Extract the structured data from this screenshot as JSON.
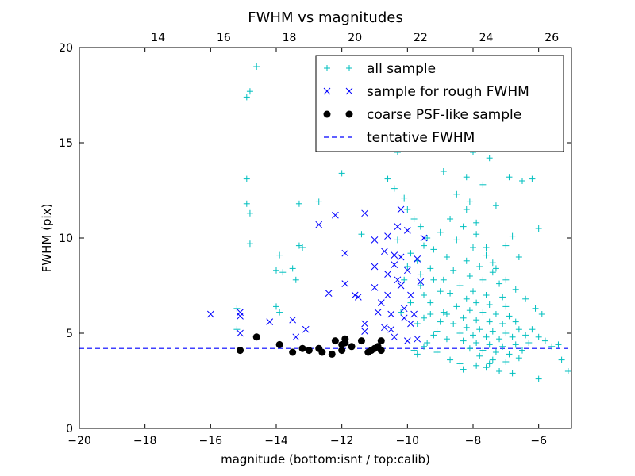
{
  "chart_data": {
    "type": "scatter",
    "title": "FWHM vs magnitudes",
    "xlabel": "magnitude (bottom:isnt / top:calib)",
    "ylabel": "FWHM (pix)",
    "xlim": [
      -20,
      -5
    ],
    "ylim": [
      0,
      20
    ],
    "x_ticks": [
      -20,
      -18,
      -16,
      -14,
      -12,
      -10,
      -8,
      -6
    ],
    "x_tick_labels": [
      "−20",
      "−18",
      "−16",
      "−14",
      "−12",
      "−10",
      "−8",
      "−6"
    ],
    "y_ticks": [
      0,
      5,
      10,
      15,
      20
    ],
    "y_tick_labels": [
      "0",
      "5",
      "10",
      "15",
      "20"
    ],
    "top_axis": {
      "offset": 31.6,
      "ticks": [
        14,
        16,
        18,
        20,
        22,
        24,
        26
      ],
      "tick_labels": [
        "14",
        "16",
        "18",
        "20",
        "22",
        "24",
        "26"
      ]
    },
    "legend_position": "upper right",
    "grid": false,
    "series": [
      {
        "name": "all sample",
        "marker": "plus",
        "color": "#00bfbf",
        "points": [
          [
            -14.6,
            19.0
          ],
          [
            -14.9,
            17.4
          ],
          [
            -14.8,
            17.7
          ],
          [
            -14.9,
            13.1
          ],
          [
            -14.9,
            11.8
          ],
          [
            -14.8,
            11.3
          ],
          [
            -14.8,
            9.7
          ],
          [
            -15.2,
            6.3
          ],
          [
            -15.2,
            5.2
          ],
          [
            -14.0,
            8.3
          ],
          [
            -13.9,
            9.1
          ],
          [
            -13.8,
            8.2
          ],
          [
            -14.0,
            6.4
          ],
          [
            -13.9,
            6.1
          ],
          [
            -13.5,
            8.4
          ],
          [
            -13.4,
            7.8
          ],
          [
            -13.3,
            9.6
          ],
          [
            -13.2,
            9.5
          ],
          [
            -13.3,
            11.8
          ],
          [
            -12.7,
            11.9
          ],
          [
            -12.0,
            13.4
          ],
          [
            -11.4,
            10.2
          ],
          [
            -10.3,
            14.5
          ],
          [
            -10.6,
            13.1
          ],
          [
            -10.4,
            12.6
          ],
          [
            -10.1,
            12.1
          ],
          [
            -9.8,
            11.0
          ],
          [
            -9.6,
            10.6
          ],
          [
            -9.4,
            10.0
          ],
          [
            -9.9,
            9.2
          ],
          [
            -10.0,
            8.5
          ],
          [
            -9.6,
            8.1
          ],
          [
            -9.2,
            7.8
          ],
          [
            -9.5,
            7.0
          ],
          [
            -9.9,
            6.6
          ],
          [
            -9.3,
            6.0
          ],
          [
            -9.7,
            5.5
          ],
          [
            -9.1,
            5.1
          ],
          [
            -9.4,
            4.5
          ],
          [
            -9.8,
            4.1
          ],
          [
            -8.1,
            16.2
          ],
          [
            -8.4,
            15.9
          ],
          [
            -7.8,
            15.3
          ],
          [
            -8.6,
            14.9
          ],
          [
            -8.0,
            14.5
          ],
          [
            -7.5,
            14.2
          ],
          [
            -8.9,
            13.5
          ],
          [
            -8.2,
            13.2
          ],
          [
            -7.7,
            12.8
          ],
          [
            -8.5,
            12.3
          ],
          [
            -8.1,
            11.9
          ],
          [
            -7.3,
            11.7
          ],
          [
            -6.2,
            13.1
          ],
          [
            -6.5,
            13.0
          ],
          [
            -6.9,
            13.2
          ],
          [
            -6.0,
            10.5
          ],
          [
            -6.8,
            10.1
          ],
          [
            -7.0,
            9.6
          ],
          [
            -6.6,
            9.0
          ],
          [
            -7.4,
            8.7
          ],
          [
            -8.7,
            11.0
          ],
          [
            -8.3,
            10.6
          ],
          [
            -7.9,
            10.2
          ],
          [
            -9.0,
            10.3
          ],
          [
            -8.5,
            9.9
          ],
          [
            -8.0,
            9.5
          ],
          [
            -7.6,
            9.1
          ],
          [
            -8.8,
            9.0
          ],
          [
            -8.2,
            8.8
          ],
          [
            -7.8,
            8.5
          ],
          [
            -7.4,
            8.2
          ],
          [
            -8.6,
            8.3
          ],
          [
            -8.1,
            8.0
          ],
          [
            -7.7,
            7.8
          ],
          [
            -7.2,
            7.6
          ],
          [
            -8.9,
            7.8
          ],
          [
            -8.4,
            7.5
          ],
          [
            -8.0,
            7.2
          ],
          [
            -7.6,
            7.0
          ],
          [
            -7.1,
            6.9
          ],
          [
            -8.7,
            7.1
          ],
          [
            -8.2,
            6.8
          ],
          [
            -7.9,
            6.6
          ],
          [
            -7.5,
            6.5
          ],
          [
            -7.0,
            6.4
          ],
          [
            -8.5,
            6.4
          ],
          [
            -8.1,
            6.2
          ],
          [
            -7.7,
            6.1
          ],
          [
            -7.3,
            6.0
          ],
          [
            -6.9,
            5.9
          ],
          [
            -8.8,
            6.0
          ],
          [
            -8.3,
            5.8
          ],
          [
            -7.9,
            5.7
          ],
          [
            -7.5,
            5.6
          ],
          [
            -7.1,
            5.5
          ],
          [
            -6.7,
            5.6
          ],
          [
            -8.6,
            5.5
          ],
          [
            -8.2,
            5.3
          ],
          [
            -7.8,
            5.2
          ],
          [
            -7.4,
            5.1
          ],
          [
            -7.0,
            5.0
          ],
          [
            -6.6,
            5.2
          ],
          [
            -8.4,
            5.0
          ],
          [
            -8.0,
            4.9
          ],
          [
            -7.6,
            4.8
          ],
          [
            -7.2,
            4.7
          ],
          [
            -6.8,
            4.8
          ],
          [
            -6.4,
            4.9
          ],
          [
            -8.3,
            4.6
          ],
          [
            -7.9,
            4.5
          ],
          [
            -7.5,
            4.4
          ],
          [
            -7.1,
            4.3
          ],
          [
            -6.7,
            4.4
          ],
          [
            -6.3,
            4.5
          ],
          [
            -8.1,
            4.2
          ],
          [
            -7.7,
            4.1
          ],
          [
            -7.3,
            4.0
          ],
          [
            -6.9,
            3.9
          ],
          [
            -6.5,
            4.1
          ],
          [
            -7.8,
            3.8
          ],
          [
            -7.4,
            3.6
          ],
          [
            -7.0,
            3.5
          ],
          [
            -6.6,
            3.7
          ],
          [
            -8.3,
            3.1
          ],
          [
            -7.6,
            3.2
          ],
          [
            -7.2,
            3.0
          ],
          [
            -6.8,
            2.9
          ],
          [
            -6.0,
            2.6
          ],
          [
            -6.2,
            5.2
          ],
          [
            -6.0,
            4.8
          ],
          [
            -5.8,
            4.6
          ],
          [
            -5.6,
            4.3
          ],
          [
            -5.4,
            4.4
          ],
          [
            -5.1,
            3.0
          ],
          [
            -5.3,
            3.6
          ],
          [
            -5.9,
            6.0
          ],
          [
            -6.1,
            6.3
          ],
          [
            -6.4,
            6.8
          ],
          [
            -6.7,
            7.3
          ],
          [
            -7.0,
            7.8
          ],
          [
            -7.3,
            8.4
          ],
          [
            -7.6,
            9.5
          ],
          [
            -7.9,
            10.8
          ],
          [
            -8.2,
            11.5
          ],
          [
            -9.2,
            9.4
          ],
          [
            -9.5,
            9.6
          ],
          [
            -9.7,
            8.8
          ],
          [
            -9.3,
            8.4
          ],
          [
            -9.6,
            7.5
          ],
          [
            -9.0,
            7.2
          ],
          [
            -9.3,
            6.6
          ],
          [
            -8.9,
            6.1
          ],
          [
            -9.5,
            5.8
          ],
          [
            -9.0,
            5.6
          ],
          [
            -9.2,
            4.9
          ],
          [
            -8.8,
            4.7
          ],
          [
            -9.5,
            4.3
          ],
          [
            -9.1,
            4.0
          ],
          [
            -9.7,
            3.9
          ],
          [
            -8.7,
            3.6
          ],
          [
            -8.4,
            3.4
          ],
          [
            -7.9,
            3.3
          ],
          [
            -7.5,
            3.4
          ],
          [
            -10.1,
            7.8
          ],
          [
            -10.2,
            6.1
          ],
          [
            -10.3,
            9.9
          ],
          [
            -10.0,
            11.5
          ]
        ]
      },
      {
        "name": "sample for rough FWHM",
        "marker": "x",
        "color": "#0000ff",
        "points": [
          [
            -16.0,
            6.0
          ],
          [
            -15.1,
            6.1
          ],
          [
            -15.1,
            5.9
          ],
          [
            -15.1,
            5.0
          ],
          [
            -14.2,
            5.6
          ],
          [
            -13.5,
            5.7
          ],
          [
            -13.1,
            5.2
          ],
          [
            -13.4,
            4.8
          ],
          [
            -12.7,
            10.7
          ],
          [
            -12.4,
            7.1
          ],
          [
            -12.2,
            11.2
          ],
          [
            -11.9,
            9.2
          ],
          [
            -11.9,
            7.6
          ],
          [
            -11.6,
            7.0
          ],
          [
            -11.3,
            11.3
          ],
          [
            -11.5,
            6.9
          ],
          [
            -11.3,
            5.5
          ],
          [
            -11.3,
            5.1
          ],
          [
            -11.0,
            9.9
          ],
          [
            -11.0,
            8.5
          ],
          [
            -11.0,
            7.4
          ],
          [
            -10.9,
            6.1
          ],
          [
            -10.7,
            9.3
          ],
          [
            -10.6,
            10.1
          ],
          [
            -10.6,
            8.1
          ],
          [
            -10.6,
            7.0
          ],
          [
            -10.5,
            6.0
          ],
          [
            -10.5,
            5.2
          ],
          [
            -10.3,
            10.6
          ],
          [
            -10.2,
            11.5
          ],
          [
            -10.2,
            9.0
          ],
          [
            -10.2,
            7.5
          ],
          [
            -10.1,
            6.3
          ],
          [
            -10.0,
            10.4
          ],
          [
            -10.0,
            8.3
          ],
          [
            -9.9,
            7.0
          ],
          [
            -9.9,
            5.5
          ],
          [
            -10.0,
            4.6
          ],
          [
            -9.7,
            8.9
          ],
          [
            -9.5,
            10.0
          ],
          [
            -9.8,
            6.0
          ],
          [
            -9.7,
            4.7
          ],
          [
            -10.4,
            4.8
          ],
          [
            -10.1,
            5.8
          ],
          [
            -10.3,
            7.8
          ],
          [
            -10.4,
            9.1
          ],
          [
            -9.6,
            7.7
          ],
          [
            -10.7,
            5.3
          ],
          [
            -10.8,
            6.6
          ],
          [
            -10.4,
            8.6
          ]
        ]
      },
      {
        "name": "coarse PSF-like sample",
        "marker": "circle",
        "color": "#000000",
        "points": [
          [
            -15.1,
            4.1
          ],
          [
            -14.6,
            4.8
          ],
          [
            -13.9,
            4.4
          ],
          [
            -13.5,
            4.0
          ],
          [
            -13.2,
            4.2
          ],
          [
            -13.0,
            4.1
          ],
          [
            -12.7,
            4.2
          ],
          [
            -12.6,
            4.0
          ],
          [
            -12.3,
            3.9
          ],
          [
            -12.2,
            4.6
          ],
          [
            -12.0,
            4.4
          ],
          [
            -12.0,
            4.1
          ],
          [
            -11.9,
            4.7
          ],
          [
            -11.9,
            4.5
          ],
          [
            -11.7,
            4.3
          ],
          [
            -11.4,
            4.6
          ],
          [
            -11.1,
            4.1
          ],
          [
            -11.0,
            4.2
          ],
          [
            -10.9,
            4.3
          ],
          [
            -10.8,
            4.1
          ],
          [
            -10.8,
            4.6
          ],
          [
            -11.2,
            4.0
          ]
        ]
      },
      {
        "name": "tentative FWHM",
        "line": "dashed",
        "color": "#0000ff",
        "y": 4.2
      }
    ]
  }
}
